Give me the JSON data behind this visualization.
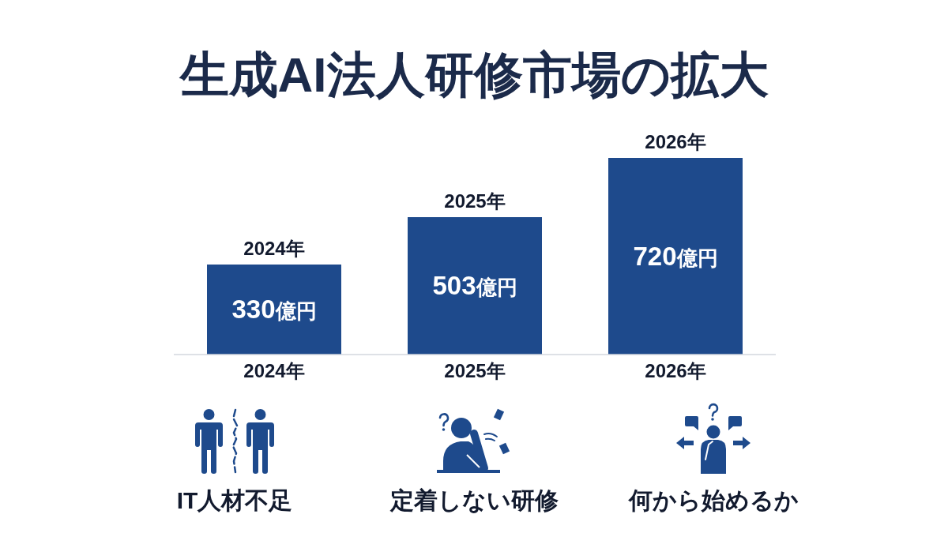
{
  "chart_data": {
    "type": "bar",
    "title": "生成AI法人研修市場の拡大",
    "categories": [
      "2024年",
      "2025年",
      "2026年"
    ],
    "values": [
      330,
      503,
      720
    ],
    "value_labels": [
      "330億円",
      "503億円",
      "720億円"
    ],
    "color": "#1e4a8c",
    "annotations": [
      "IT人材不足",
      "定着しない研修",
      "何から始めるか"
    ]
  }
}
